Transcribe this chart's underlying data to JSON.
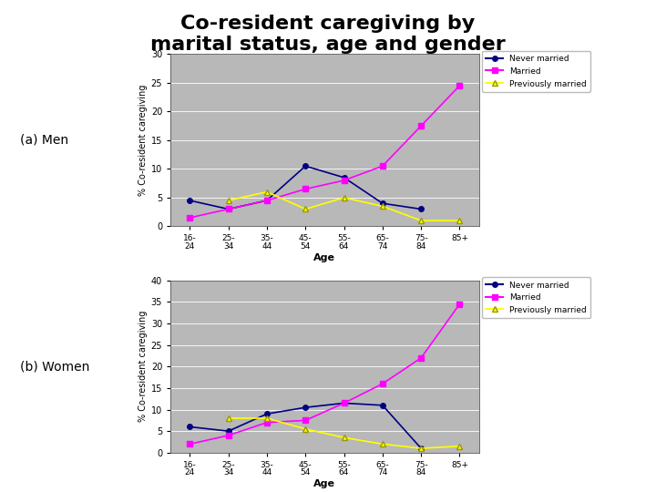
{
  "title": "Co-resident caregiving by\nmarital status, age and gender",
  "title_fontsize": 16,
  "label_a": "(a) Men",
  "label_b": "(b) Women",
  "age_labels": [
    "16-\n24",
    "25-\n34",
    "35-\n44",
    "45-\n54",
    "55-\n64",
    "65-\n74",
    "75-\n84",
    "85+"
  ],
  "men": {
    "never_married": [
      4.5,
      3.0,
      4.5,
      10.5,
      8.5,
      4.0,
      3.0,
      null
    ],
    "married": [
      1.5,
      3.0,
      4.5,
      6.5,
      8.0,
      10.5,
      17.5,
      24.5
    ],
    "previously_married": [
      null,
      4.5,
      6.0,
      3.0,
      5.0,
      3.5,
      1.0,
      1.0
    ]
  },
  "women": {
    "never_married": [
      6.0,
      5.0,
      9.0,
      10.5,
      11.5,
      11.0,
      1.0,
      null
    ],
    "married": [
      2.0,
      4.0,
      7.0,
      7.5,
      11.5,
      16.0,
      22.0,
      34.5
    ],
    "previously_married": [
      null,
      8.0,
      8.0,
      5.5,
      3.5,
      2.0,
      1.0,
      1.5
    ]
  },
  "men_ylim": [
    0,
    30
  ],
  "men_yticks": [
    0,
    5,
    10,
    15,
    20,
    25,
    30
  ],
  "women_ylim": [
    0,
    40
  ],
  "women_yticks": [
    0,
    5,
    10,
    15,
    20,
    25,
    30,
    35,
    40
  ],
  "ylabel": "% Co-resident caregiving",
  "xlabel": "Age",
  "color_never": "#000080",
  "color_married": "#FF00FF",
  "color_prev": "#FFFF00",
  "bg_color": "#B8B8B8",
  "legend_labels": [
    "Never married",
    "Married",
    "Previously married"
  ],
  "fig_bg": "#FFFFFF"
}
